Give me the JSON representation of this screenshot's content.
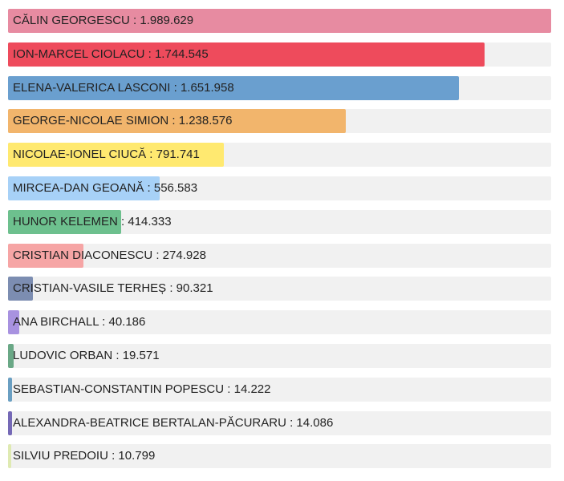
{
  "chart_data": {
    "type": "bar",
    "orientation": "horizontal",
    "title": "",
    "xlabel": "",
    "ylabel": "",
    "grid": false,
    "legend": "none",
    "xlim": [
      0,
      1989629
    ],
    "categories": [
      "CĂLIN GEORGESCU",
      "ION-MARCEL CIOLACU",
      "ELENA-VALERICA LASCONI",
      "GEORGE-NICOLAE SIMION",
      "NICOLAE-IONEL CIUCĂ",
      "MIRCEA-DAN GEOANĂ",
      "HUNOR KELEMEN",
      "CRISTIAN DIACONESCU",
      "CRISTIAN-VASILE TERHEȘ",
      "ANA BIRCHALL",
      "LUDOVIC ORBAN",
      "SEBASTIAN-CONSTANTIN POPESCU",
      "ALEXANDRA-BEATRICE BERTALAN-PĂCURARU",
      "SILVIU PREDOIU"
    ],
    "values": [
      1989629,
      1744545,
      1651958,
      1238576,
      791741,
      556583,
      414333,
      274928,
      90321,
      40186,
      19571,
      14222,
      14086,
      10799
    ],
    "labels": [
      "CĂLIN GEORGESCU : 1.989.629",
      "ION-MARCEL CIOLACU : 1.744.545",
      "ELENA-VALERICA LASCONI : 1.651.958",
      "GEORGE-NICOLAE SIMION : 1.238.576",
      "NICOLAE-IONEL CIUCĂ : 791.741",
      "MIRCEA-DAN GEOANĂ : 556.583",
      "HUNOR KELEMEN : 414.333",
      "CRISTIAN DIACONESCU : 274.928",
      "CRISTIAN-VASILE TERHEȘ : 90.321",
      "ANA BIRCHALL : 40.186",
      "LUDOVIC ORBAN : 19.571",
      "SEBASTIAN-CONSTANTIN POPESCU : 14.222",
      "ALEXANDRA-BEATRICE BERTALAN-PĂCURARU : 14.086",
      "SILVIU PREDOIU : 10.799"
    ],
    "colors": [
      "#e78ba1",
      "#ee4b5c",
      "#6a9fcf",
      "#f2b56c",
      "#ffe970",
      "#a7d1f7",
      "#6dc08e",
      "#f6a5a5",
      "#7c8db1",
      "#a892e0",
      "#6aa886",
      "#6a9fc2",
      "#7569b6",
      "#dfeab2"
    ]
  }
}
